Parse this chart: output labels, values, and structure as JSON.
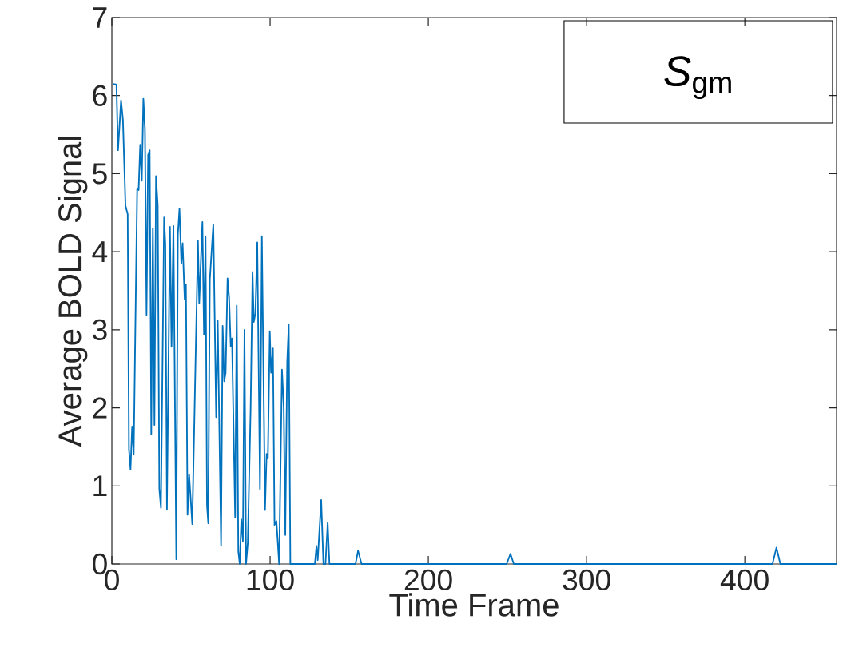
{
  "chart_data": {
    "type": "line",
    "xlabel": "Time Frame",
    "ylabel": "Average BOLD Signal",
    "x": [
      1,
      2.9,
      3.9,
      5.8,
      7,
      8.6,
      10,
      10.8,
      11.8,
      12.8,
      13.8,
      16,
      16.9,
      17.9,
      18.9,
      19.9,
      20.9,
      21.9,
      22.9,
      23.9,
      24.9,
      25.9,
      26.9,
      27.9,
      29,
      30,
      31,
      33,
      33.8,
      34.8,
      36.7,
      37.7,
      38.9,
      40.7,
      41.7,
      42.7,
      43.9,
      44.7,
      46,
      46.8,
      47.8,
      48.8,
      50.8,
      54.4,
      55.2,
      57.2,
      58.2,
      59.2,
      60.1,
      60.9,
      61.9,
      64.1,
      65.9,
      66.9,
      69,
      70,
      71,
      71.9,
      73.1,
      74.1,
      75.1,
      75.9,
      77.9,
      78.9,
      79.9,
      80.8,
      81.8,
      82.8,
      83.8,
      84.8,
      85.9,
      87.7,
      88.9,
      89.7,
      90.7,
      91.9,
      93.6,
      94.8,
      96.8,
      97.8,
      98.6,
      99.8,
      100.6,
      101.8,
      102.8,
      104,
      105.7,
      107.5,
      108.6,
      109.6,
      110.8,
      111.8,
      112.8,
      128.3,
      129.3,
      130.1,
      132.3,
      133.7,
      135,
      136.4,
      137.5,
      154,
      155.6,
      157.8,
      249.5,
      251.9,
      254,
      417.5,
      420,
      422.5,
      458
    ],
    "series": [
      {
        "name": "*S*$_{gm}$",
        "color": "#0072bd",
        "values": [
          6.15,
          6.14,
          5.3,
          5.94,
          5.69,
          4.59,
          4.48,
          1.47,
          1.21,
          1.76,
          1.41,
          4.81,
          4.79,
          5.37,
          4.91,
          5.96,
          5.57,
          3.19,
          5.24,
          5.3,
          1.66,
          4.3,
          1.78,
          4.97,
          4.59,
          0.96,
          0.72,
          4.44,
          4.09,
          0.7,
          4.32,
          2.78,
          4.33,
          0.06,
          4.22,
          4.55,
          3.85,
          4.11,
          3.39,
          3.58,
          0.63,
          1.15,
          0.51,
          4.14,
          3.34,
          4.38,
          2.94,
          4.19,
          0.75,
          0.52,
          3.64,
          4.35,
          1.88,
          3.12,
          0.24,
          3.05,
          2.34,
          2.45,
          3.66,
          3.41,
          2.79,
          2.89,
          0.6,
          3.31,
          0.16,
          0,
          0.57,
          0.29,
          3,
          0,
          0.27,
          2,
          3.74,
          3.1,
          3.21,
          4.12,
          0.96,
          4.2,
          0.69,
          1.41,
          1.36,
          2.98,
          2.45,
          2.76,
          0.5,
          0.55,
          0,
          2.49,
          2.02,
          0.37,
          2.59,
          3.07,
          0,
          0,
          0.23,
          0.05,
          0.82,
          0,
          0,
          0.53,
          0,
          0,
          0.17,
          0,
          0,
          0.13,
          0,
          0,
          0.21,
          0,
          0
        ]
      }
    ],
    "xlim": [
      0,
      458
    ],
    "ylim": [
      0,
      7
    ],
    "xticks": [
      0,
      100,
      200,
      300,
      400
    ],
    "yticks": [
      0,
      1,
      2,
      3,
      4,
      5,
      6,
      7
    ],
    "legend": "top right"
  }
}
